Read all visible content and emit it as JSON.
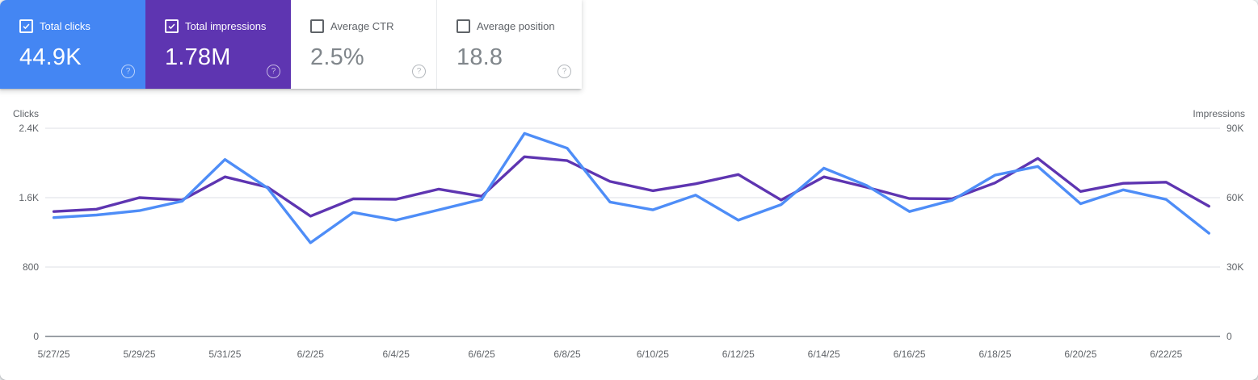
{
  "cards": [
    {
      "label": "Total clicks",
      "value": "44.9K",
      "selected": true,
      "bg": "#4486f3",
      "fg": "#ffffff"
    },
    {
      "label": "Total impressions",
      "value": "1.78M",
      "selected": true,
      "bg": "#5e35b1",
      "fg": "#ffffff"
    },
    {
      "label": "Average CTR",
      "value": "2.5%",
      "selected": false
    },
    {
      "label": "Average position",
      "value": "18.8",
      "selected": false
    }
  ],
  "help_icon_glyph": "?",
  "chart_data": {
    "type": "line",
    "x": [
      "5/27/25",
      "5/28/25",
      "5/29/25",
      "5/30/25",
      "5/31/25",
      "6/1/25",
      "6/2/25",
      "6/3/25",
      "6/4/25",
      "6/5/25",
      "6/6/25",
      "6/7/25",
      "6/8/25",
      "6/9/25",
      "6/10/25",
      "6/11/25",
      "6/12/25",
      "6/13/25",
      "6/14/25",
      "6/15/25",
      "6/16/25",
      "6/17/25",
      "6/18/25",
      "6/19/25",
      "6/20/25",
      "6/21/25",
      "6/22/25",
      "6/23/25"
    ],
    "x_tick_every": 2,
    "series": [
      {
        "name": "Total impressions",
        "axis": "right",
        "color": "#5e35b1",
        "values": [
          54000,
          55000,
          60000,
          59000,
          69000,
          64500,
          52000,
          59500,
          59300,
          63700,
          60600,
          77700,
          76000,
          67000,
          63000,
          66000,
          70000,
          59000,
          69000,
          64500,
          59600,
          59500,
          66400,
          77000,
          62700,
          66200,
          66700,
          56300
        ]
      },
      {
        "name": "Total clicks",
        "axis": "left",
        "color": "#4e8df7",
        "values": [
          1370,
          1400,
          1450,
          1560,
          2040,
          1710,
          1080,
          1430,
          1340,
          1460,
          1580,
          2340,
          2170,
          1550,
          1460,
          1630,
          1340,
          1520,
          1940,
          1740,
          1440,
          1570,
          1860,
          1960,
          1530,
          1690,
          1580,
          1190
        ]
      }
    ],
    "left_axis": {
      "title": "Clicks",
      "tick_labels": [
        "0",
        "800",
        "1.6K",
        "2.4K"
      ],
      "tick_values": [
        0,
        800,
        1600,
        2400
      ],
      "max": 2400
    },
    "right_axis": {
      "title": "Impressions",
      "tick_labels": [
        "0",
        "30K",
        "60K",
        "90K"
      ],
      "tick_values": [
        0,
        30000,
        60000,
        90000
      ],
      "max": 90000
    },
    "grid": true,
    "legend_position": "none",
    "grid_color": "#e8eaed",
    "zero_axis_color": "#9aa0a6"
  }
}
